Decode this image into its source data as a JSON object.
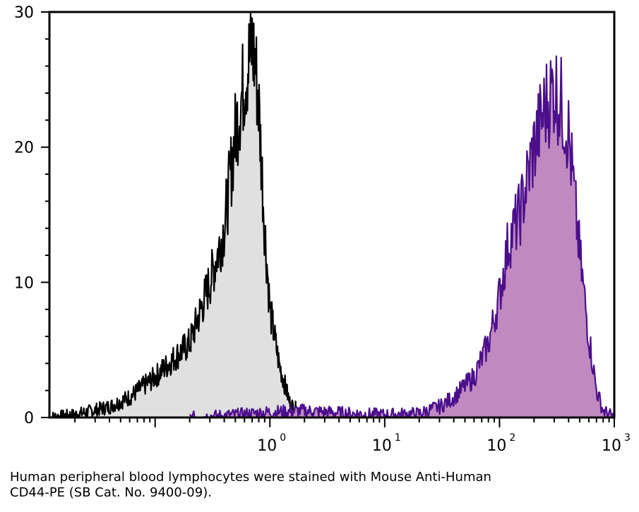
{
  "chart_data": {
    "type": "area",
    "title": "",
    "xlabel": "",
    "ylabel": "",
    "x_scale": "log",
    "xlim": [
      0.012,
      1000
    ],
    "ylim": [
      0,
      30
    ],
    "x_ticks": [
      {
        "base": "10",
        "exp": "0",
        "value": 1
      },
      {
        "base": "10",
        "exp": "1",
        "value": 10
      },
      {
        "base": "10",
        "exp": "2",
        "value": 100
      },
      {
        "base": "10",
        "exp": "3",
        "value": 1000
      }
    ],
    "y_ticks": [
      "0",
      "10",
      "20",
      "30"
    ],
    "grid": false,
    "legend": "none",
    "series": [
      {
        "fill": "#e0e0e0",
        "stroke": "#000000",
        "points": [
          [
            0.012,
            0
          ],
          [
            0.02,
            0.2
          ],
          [
            0.04,
            0.8
          ],
          [
            0.06,
            1.5
          ],
          [
            0.1,
            3
          ],
          [
            0.2,
            5.5
          ],
          [
            0.3,
            10
          ],
          [
            0.4,
            14
          ],
          [
            0.5,
            21
          ],
          [
            0.6,
            25
          ],
          [
            0.7,
            27.5
          ],
          [
            0.75,
            26
          ],
          [
            0.8,
            23
          ],
          [
            0.9,
            14
          ],
          [
            1.0,
            8
          ],
          [
            1.2,
            4
          ],
          [
            1.5,
            1
          ],
          [
            2.0,
            0.1
          ],
          [
            3.0,
            0
          ]
        ]
      },
      {
        "fill": "#c08ac0",
        "stroke": "#4b0f8c",
        "points": [
          [
            0.2,
            0
          ],
          [
            0.5,
            0.2
          ],
          [
            1.0,
            0.4
          ],
          [
            2.0,
            0.5
          ],
          [
            5.0,
            0.3
          ],
          [
            10,
            0.2
          ],
          [
            20,
            0.3
          ],
          [
            30,
            0.8
          ],
          [
            40,
            1.5
          ],
          [
            60,
            3
          ],
          [
            80,
            5.5
          ],
          [
            100,
            9
          ],
          [
            120,
            13
          ],
          [
            150,
            15
          ],
          [
            200,
            20
          ],
          [
            250,
            23
          ],
          [
            300,
            24.5
          ],
          [
            350,
            23
          ],
          [
            400,
            21
          ],
          [
            500,
            12
          ],
          [
            600,
            6
          ],
          [
            700,
            2
          ],
          [
            800,
            0.5
          ],
          [
            1000,
            0
          ]
        ]
      }
    ]
  },
  "caption": {
    "line1": "Human peripheral blood lymphocytes were stained with Mouse Anti-Human",
    "line2": "CD44-PE (SB Cat. No. 9400-09)."
  }
}
